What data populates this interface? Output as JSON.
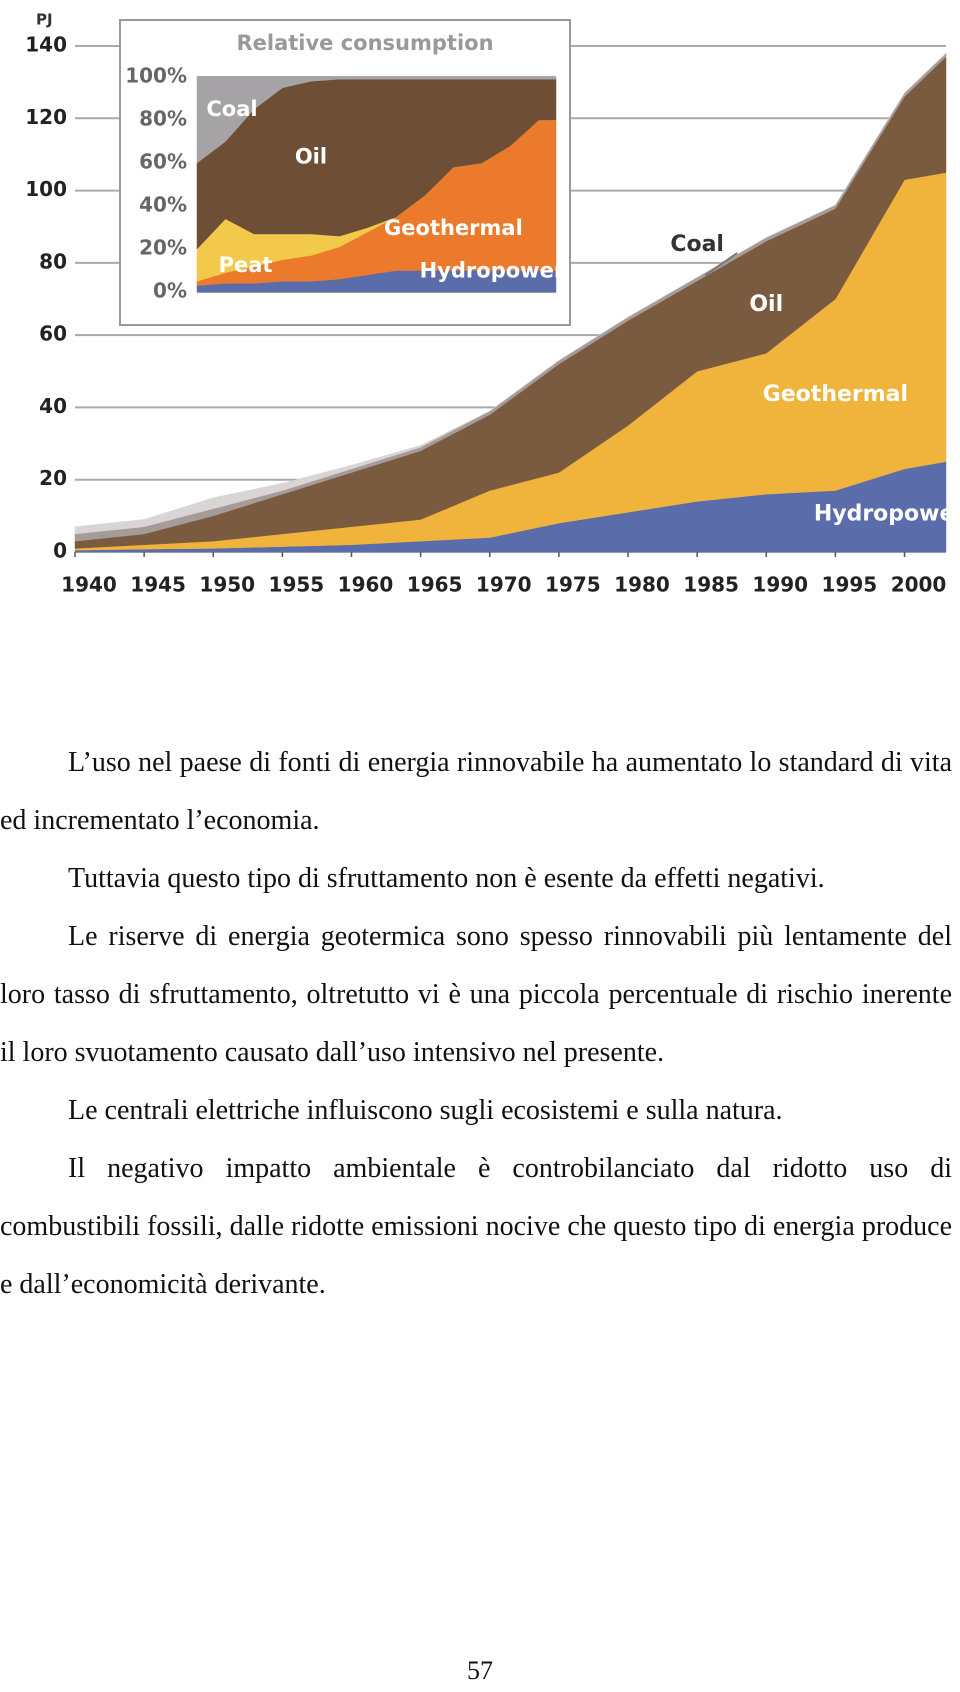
{
  "chart_data": [
    {
      "type": "area",
      "y_label": "PJ",
      "x": [
        1940,
        1945,
        1950,
        1955,
        1960,
        1965,
        1970,
        1975,
        1980,
        1985,
        1990,
        1995,
        2000,
        2003
      ],
      "xlim": [
        1940,
        2003
      ],
      "xticks": [
        1940,
        1945,
        1950,
        1955,
        1960,
        1965,
        1970,
        1975,
        1980,
        1985,
        1990,
        1995,
        2000
      ],
      "ylim": [
        0,
        140
      ],
      "yticks": [
        0,
        20,
        40,
        60,
        80,
        100,
        120,
        140
      ],
      "grid": true,
      "series": [
        {
          "name": "Hydropower",
          "color": "#5b6cab",
          "values": [
            0.5,
            0.8,
            1,
            1.5,
            2,
            3,
            4,
            8,
            11,
            14,
            16,
            17,
            23,
            25
          ]
        },
        {
          "name": "Geothermal",
          "color": "#f0b43c",
          "values": [
            0.5,
            1.2,
            2,
            3.5,
            5,
            6,
            13,
            14,
            24,
            36,
            39,
            53,
            80,
            80
          ]
        },
        {
          "name": "Oil",
          "color": "#7b5b3f",
          "values": [
            2,
            3,
            7,
            11,
            15,
            19,
            21,
            30,
            29,
            25,
            31,
            25,
            23,
            32
          ]
        },
        {
          "name": "Coal",
          "color": "#a59c9a",
          "values": [
            2,
            2,
            2,
            1,
            1,
            1,
            1,
            1,
            1,
            1,
            1,
            1,
            1,
            1
          ]
        },
        {
          "color": "#d9d5d5",
          "values": [
            2,
            2,
            3,
            2,
            1,
            0.5,
            0,
            0,
            0,
            0,
            0,
            0,
            0,
            0
          ]
        }
      ]
    },
    {
      "type": "area",
      "title": "Relative consumption",
      "x": [
        1940,
        1945,
        1950,
        1955,
        1960,
        1965,
        1970,
        1975,
        1980,
        1985,
        1990,
        1995,
        2000,
        2003
      ],
      "xlim": [
        1940,
        2003
      ],
      "ylim": [
        0,
        100
      ],
      "yticks": [
        {
          "value": 0,
          "label": "0%"
        },
        {
          "value": 20,
          "label": "20%"
        },
        {
          "value": 40,
          "label": "40%"
        },
        {
          "value": 60,
          "label": "60%"
        },
        {
          "value": 80,
          "label": "80%"
        },
        {
          "value": 100,
          "label": "100%"
        }
      ],
      "series": [
        {
          "name": "Hydropower",
          "color": "#5b6cab",
          "values": [
            3,
            4,
            4,
            5,
            5,
            6,
            8,
            10,
            10,
            10,
            10,
            10,
            10,
            10
          ]
        },
        {
          "name": "Geothermal",
          "color": "#ec7a2c",
          "values": [
            2,
            5,
            8,
            10,
            12,
            15,
            20,
            25,
            35,
            48,
            50,
            58,
            70,
            70
          ]
        },
        {
          "name": "Peat",
          "color": "#f2c94a",
          "values": [
            15,
            25,
            15,
            12,
            10,
            5,
            2,
            0,
            0,
            0,
            0,
            0,
            0,
            0
          ]
        },
        {
          "name": "Oil",
          "color": "#6e4f36",
          "values": [
            40,
            36,
            58,
            68,
            71,
            73,
            69,
            64,
            54,
            41,
            39,
            31,
            19,
            19
          ]
        },
        {
          "name": "Coal",
          "color": "#a6a3a6",
          "values": [
            40,
            30,
            15,
            5,
            2,
            1,
            1,
            1,
            1,
            1,
            1,
            1,
            1,
            1
          ]
        }
      ]
    }
  ],
  "paragraphs": [
    "L’uso nel paese di fonti di energia rinnovabile ha aumentato lo standard di vita ed incrementato l’economia.",
    "Tuttavia questo tipo di sfruttamento non è esente da effetti negativi.",
    "Le riserve di energia geotermica sono spesso rinnovabili più lentamente del loro tasso di sfruttamento, oltretutto vi è una piccola percentuale di rischio inerente il loro svuotamento causato dall’uso intensivo nel presente.",
    "Le centrali elettriche influiscono sugli ecosistemi e sulla natura.",
    "Il negativo impatto ambientale è controbilanciato dal ridotto uso di combustibili fossili, dalle ridotte emissioni nocive che questo tipo di energia produce e dall’economicità derivante."
  ],
  "page_number": "57"
}
